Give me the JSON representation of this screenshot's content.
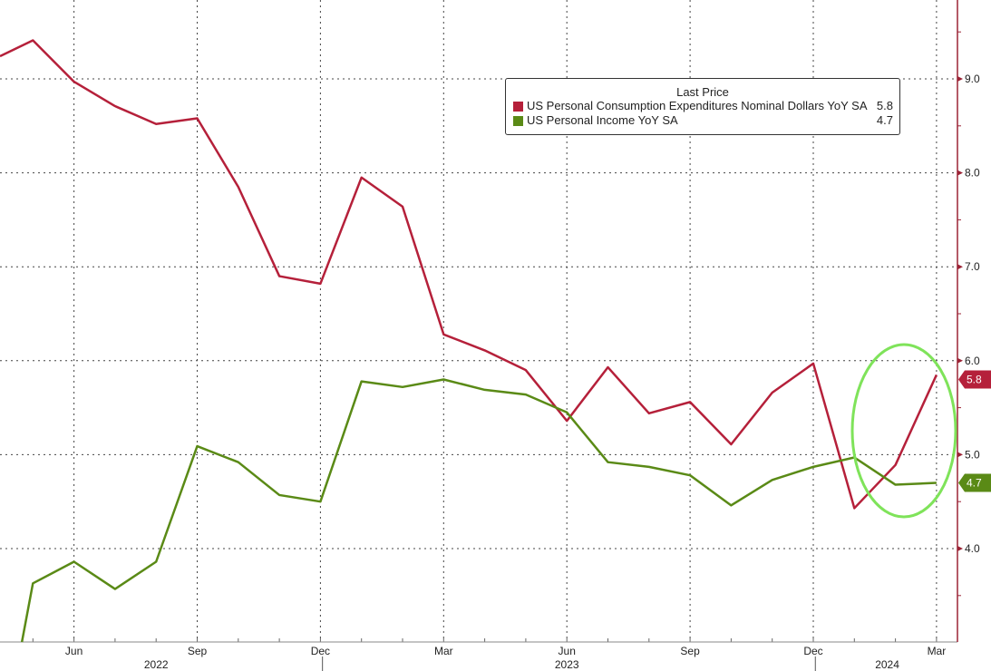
{
  "chart_data": {
    "type": "line",
    "title": "",
    "legend_title": "Last Price",
    "legend_position": "top-right",
    "x": [
      "Apr 2022",
      "May 2022",
      "Jun 2022",
      "Jul 2022",
      "Aug 2022",
      "Sep 2022",
      "Oct 2022",
      "Nov 2022",
      "Dec 2022",
      "Jan 2023",
      "Feb 2023",
      "Mar 2023",
      "Apr 2023",
      "May 2023",
      "Jun 2023",
      "Jul 2023",
      "Aug 2023",
      "Sep 2023",
      "Oct 2023",
      "Nov 2023",
      "Dec 2023",
      "Jan 2024",
      "Feb 2024",
      "Mar 2024"
    ],
    "x_tick_labels": [
      {
        "i": 2,
        "label": "Jun"
      },
      {
        "i": 5,
        "label": "Sep"
      },
      {
        "i": 8,
        "label": "Dec"
      },
      {
        "i": 11,
        "label": "Mar"
      },
      {
        "i": 14,
        "label": "Jun"
      },
      {
        "i": 17,
        "label": "Sep"
      },
      {
        "i": 20,
        "label": "Dec"
      },
      {
        "i": 23,
        "label": "Mar"
      }
    ],
    "year_labels": [
      {
        "i": 4,
        "label": "2022"
      },
      {
        "i": 14,
        "label": "2023"
      },
      {
        "i": 21.8,
        "label": "2024"
      }
    ],
    "y_ticks": [
      "4.0",
      "5.0",
      "6.0",
      "7.0",
      "8.0",
      "9.0"
    ],
    "ylim": [
      3.0,
      9.84
    ],
    "grid": true,
    "series": [
      {
        "name": "US Personal Consumption Expenditures Nominal Dollars YoY SA",
        "last": "5.8",
        "color": "#b5203a",
        "values": [
          9.2,
          9.41,
          8.97,
          8.71,
          8.52,
          8.58,
          7.85,
          6.9,
          6.82,
          7.95,
          7.64,
          6.28,
          6.11,
          5.9,
          5.36,
          5.93,
          5.44,
          5.56,
          5.11,
          5.66,
          5.97,
          4.43,
          4.89,
          5.85
        ]
      },
      {
        "name": "US Personal Income YoY SA",
        "last": "4.7",
        "color": "#5a8a16",
        "values": [
          1.3,
          3.63,
          3.86,
          3.57,
          3.86,
          5.09,
          4.92,
          4.57,
          4.5,
          5.78,
          5.72,
          5.8,
          5.69,
          5.64,
          5.45,
          4.92,
          4.87,
          4.78,
          4.46,
          4.73,
          4.87,
          4.97,
          4.68,
          4.7
        ]
      }
    ],
    "annotation": {
      "type": "ellipse-highlight",
      "color": "#7fe35a",
      "around": "Jan 2024 - Mar 2024"
    }
  }
}
